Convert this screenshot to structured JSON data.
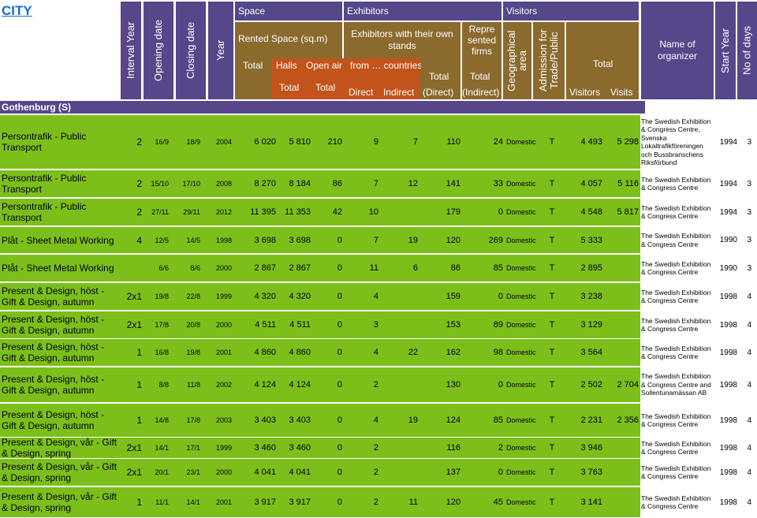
{
  "title": "CITY",
  "headers": {
    "interval_year": "Interval Year",
    "opening_date": "Opening date",
    "closing_date": "Closing date",
    "year": "Year",
    "space": "Space",
    "exhibitors": "Exhibitors",
    "visitors": "Visitors",
    "rented_space": "Rented Space (sq.m)",
    "total": "Total",
    "halls": "Halls",
    "open_air": "Open air",
    "exhibitors_own_stands": "Exhibitors with their own stands",
    "from_countries": "from … countries",
    "direct": "Direct",
    "indirect": "Indirect",
    "total_direct": "(Direct)",
    "represented_firms": "Repre sented firms",
    "total_indirect": "(Indirect)",
    "geographical_area": "Geographical area",
    "admission": "Admission for Trade/Public",
    "visitors_total": "Total",
    "visitors_col": "Visitors",
    "visits_col": "Visits",
    "organizer": "Name of organizer",
    "start_year": "Start Year",
    "no_of_days": "No of days"
  },
  "group": "Gothenburg (S)",
  "rows": [
    {
      "name": "Persontrafik - Public Transport",
      "interval": "2",
      "open": "16/9",
      "close": "18/9",
      "year": "2004",
      "rented": "6 020",
      "halls": "5 810",
      "open_air": "210",
      "direct": "9",
      "indirect": "7",
      "tdirect": "110",
      "tindirect": "24",
      "geo": "Domestic",
      "adm": "T",
      "visitors": "4 493",
      "visits": "5 298",
      "org": "The Swedish Exhibition & Congress Centre, Svenska Lokaltrafikföreningen och Bussbranschens Riksförbund",
      "start": "1994",
      "days": "3"
    },
    {
      "name": "Persontrafik - Public Transport",
      "interval": "2",
      "open": "15/10",
      "close": "17/10",
      "year": "2008",
      "rented": "8 270",
      "halls": "8 184",
      "open_air": "86",
      "direct": "7",
      "indirect": "12",
      "tdirect": "141",
      "tindirect": "33",
      "geo": "Domestic",
      "adm": "T",
      "visitors": "4 057",
      "visits": "5 116",
      "org": "The Swedish Exhibition & Congress Centre",
      "start": "1994",
      "days": "3"
    },
    {
      "name": "Persontrafik - Public Transport",
      "interval": "2",
      "open": "27/11",
      "close": "29/11",
      "year": "2012",
      "rented": "11 395",
      "halls": "11 353",
      "open_air": "42",
      "direct": "10",
      "indirect": "",
      "tdirect": "179",
      "tindirect": "0",
      "geo": "Domestic",
      "adm": "T",
      "visitors": "4 548",
      "visits": "5 817",
      "org": "The Swedish Exhibition & Congress Centre",
      "start": "1994",
      "days": "3"
    },
    {
      "name": "Plåt - Sheet Metal Working",
      "interval": "4",
      "open": "12/5",
      "close": "14/5",
      "year": "1998",
      "rented": "3 698",
      "halls": "3 698",
      "open_air": "0",
      "direct": "7",
      "indirect": "19",
      "tdirect": "120",
      "tindirect": "269",
      "geo": "Domestic",
      "adm": "T",
      "visitors": "5 333",
      "visits": "",
      "org": "The Swedish Exhibition & Congress Centre",
      "start": "1990",
      "days": "3"
    },
    {
      "name": "Plåt - Sheet Metal Working",
      "interval": "",
      "open": "6/6",
      "close": "8/6",
      "year": "2000",
      "rented": "2 867",
      "halls": "2 867",
      "open_air": "0",
      "direct": "11",
      "indirect": "6",
      "tdirect": "86",
      "tindirect": "85",
      "geo": "Domestic",
      "adm": "T",
      "visitors": "2 895",
      "visits": "",
      "org": "The Swedish Exhibition & Congress Centre",
      "start": "1990",
      "days": "3"
    },
    {
      "name": "Present & Design, höst - Gift & Design, autumn",
      "interval": "2x1",
      "open": "19/8",
      "close": "22/8",
      "year": "1999",
      "rented": "4 320",
      "halls": "4 320",
      "open_air": "0",
      "direct": "4",
      "indirect": "",
      "tdirect": "159",
      "tindirect": "0",
      "geo": "Domestic",
      "adm": "T",
      "visitors": "3 238",
      "visits": "",
      "org": "The Swedish Exhibition & Congress Centre",
      "start": "1998",
      "days": "4"
    },
    {
      "name": "Present & Design, höst - Gift & Design, autumn",
      "interval": "2x1",
      "open": "17/8",
      "close": "20/8",
      "year": "2000",
      "rented": "4 511",
      "halls": "4 511",
      "open_air": "0",
      "direct": "3",
      "indirect": "",
      "tdirect": "153",
      "tindirect": "89",
      "geo": "Domestic",
      "adm": "T",
      "visitors": "3 129",
      "visits": "",
      "org": "The Swedish Exhibition & Congress Centre",
      "start": "1998",
      "days": "4"
    },
    {
      "name": "Present & Design, höst - Gift & Design, autumn",
      "interval": "1",
      "open": "16/8",
      "close": "19/8",
      "year": "2001",
      "rented": "4 860",
      "halls": "4 860",
      "open_air": "0",
      "direct": "4",
      "indirect": "22",
      "tdirect": "162",
      "tindirect": "98",
      "geo": "Domestic",
      "adm": "T",
      "visitors": "3 564",
      "visits": "",
      "org": "The Swedish Exhibition & Congress Centre",
      "start": "1998",
      "days": "4"
    },
    {
      "name": "Present & Design, höst - Gift & Design, autumn",
      "interval": "1",
      "open": "8/8",
      "close": "11/8",
      "year": "2002",
      "rented": "4 124",
      "halls": "4 124",
      "open_air": "0",
      "direct": "2",
      "indirect": "",
      "tdirect": "130",
      "tindirect": "0",
      "geo": "Domestic",
      "adm": "T",
      "visitors": "2 502",
      "visits": "2 704",
      "org": "The Swedish Exhibition & Congress Centre and Sollentunamässan AB",
      "start": "1998",
      "days": "4"
    },
    {
      "name": "Present & Design, höst - Gift & Design, autumn",
      "interval": "1",
      "open": "14/8",
      "close": "17/8",
      "year": "2003",
      "rented": "3 403",
      "halls": "3 403",
      "open_air": "0",
      "direct": "4",
      "indirect": "19",
      "tdirect": "124",
      "tindirect": "85",
      "geo": "Domestic",
      "adm": "T",
      "visitors": "2 231",
      "visits": "2 356",
      "org": "The Swedish Exhibition & Congress Centre",
      "start": "1998",
      "days": "4"
    },
    {
      "name": "Present & Design, vår - Gift & Design, spring",
      "interval": "2x1",
      "open": "14/1",
      "close": "17/1",
      "year": "1999",
      "rented": "3 460",
      "halls": "3 460",
      "open_air": "0",
      "direct": "2",
      "indirect": "",
      "tdirect": "116",
      "tindirect": "2",
      "geo": "Domestic",
      "adm": "T",
      "visitors": "3 946",
      "visits": "",
      "org": "The Swedish Exhibition & Congress Centre",
      "start": "1998",
      "days": "4"
    },
    {
      "name": "Present & Design, vår - Gift & Design, spring",
      "interval": "2x1",
      "open": "20/1",
      "close": "23/1",
      "year": "2000",
      "rented": "4 041",
      "halls": "4 041",
      "open_air": "0",
      "direct": "2",
      "indirect": "",
      "tdirect": "137",
      "tindirect": "0",
      "geo": "Domestic",
      "adm": "T",
      "visitors": "3 763",
      "visits": "",
      "org": "The Swedish Exhibition & Congress Centre",
      "start": "1998",
      "days": "4"
    },
    {
      "name": "Present & Design, vår - Gift & Design, spring",
      "interval": "1",
      "open": "11/1",
      "close": "14/1",
      "year": "2001",
      "rented": "3 917",
      "halls": "3 917",
      "open_air": "0",
      "direct": "2",
      "indirect": "11",
      "tdirect": "120",
      "tindirect": "45",
      "geo": "Domestic",
      "adm": "T",
      "visitors": "3 141",
      "visits": "",
      "org": "The Swedish Exhibition & Congress Centre",
      "start": "1998",
      "days": "4"
    }
  ]
}
